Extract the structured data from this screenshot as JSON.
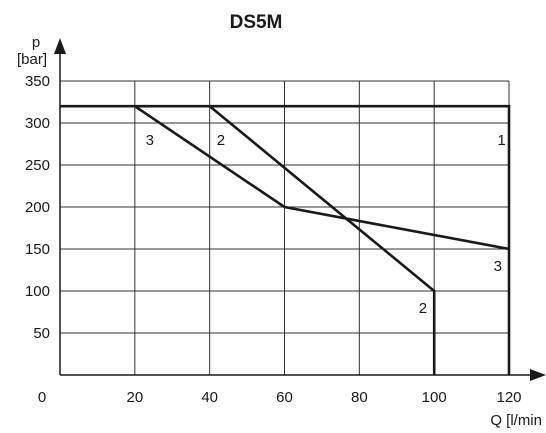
{
  "chart_data": {
    "type": "line",
    "title": "DS5M",
    "xlabel": "Q [l/min",
    "ylabel_line1": "p",
    "ylabel_line2": "[bar]",
    "xlim": [
      0,
      120
    ],
    "ylim": [
      0,
      350
    ],
    "x_ticks": [
      0,
      20,
      40,
      60,
      80,
      100,
      120
    ],
    "y_ticks": [
      50,
      100,
      150,
      200,
      250,
      300,
      350
    ],
    "grid": true,
    "line_color": "#1a1a1a",
    "grid_color": "#333333",
    "series": [
      {
        "name": "1",
        "points": [
          [
            0,
            320
          ],
          [
            120,
            320
          ],
          [
            120,
            0
          ]
        ]
      },
      {
        "name": "2",
        "points": [
          [
            40,
            320
          ],
          [
            100,
            100
          ],
          [
            100,
            0
          ]
        ]
      },
      {
        "name": "3",
        "points": [
          [
            20,
            320
          ],
          [
            60,
            200
          ],
          [
            120,
            150
          ]
        ]
      }
    ],
    "curve_labels": [
      {
        "text": "1",
        "x": 118,
        "y": 280
      },
      {
        "text": "2",
        "x": 43,
        "y": 280
      },
      {
        "text": "2",
        "x": 97,
        "y": 80
      },
      {
        "text": "3",
        "x": 24,
        "y": 280
      },
      {
        "text": "3",
        "x": 117,
        "y": 130
      }
    ]
  }
}
